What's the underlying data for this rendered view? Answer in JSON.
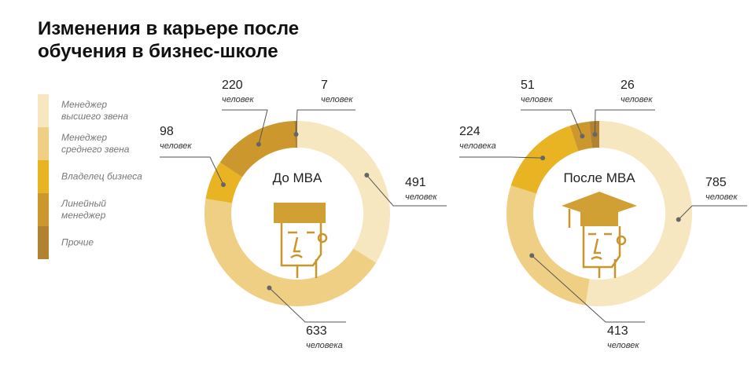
{
  "title": "Изменения в карьере после обучения в бизнес-школе",
  "chart_data": [
    {
      "type": "pie",
      "title": "До MBA",
      "categories": [
        "Менеджер высшего звена",
        "Менеджер среднего звена",
        "Владелец бизнеса",
        "Линейный менеджер",
        "Прочие"
      ],
      "colors": [
        "#f7e7c0",
        "#eecf84",
        "#e8b424",
        "#cc982e",
        "#b08232"
      ],
      "values": [
        491,
        633,
        98,
        220,
        7
      ],
      "units": [
        "человек",
        "человека",
        "человек",
        "человек",
        "человек"
      ]
    },
    {
      "type": "pie",
      "title": "После MBA",
      "values": [
        785,
        413,
        224,
        51,
        26
      ],
      "units": [
        "человек",
        "человек",
        "человека",
        "человек",
        "человек"
      ]
    }
  ]
}
